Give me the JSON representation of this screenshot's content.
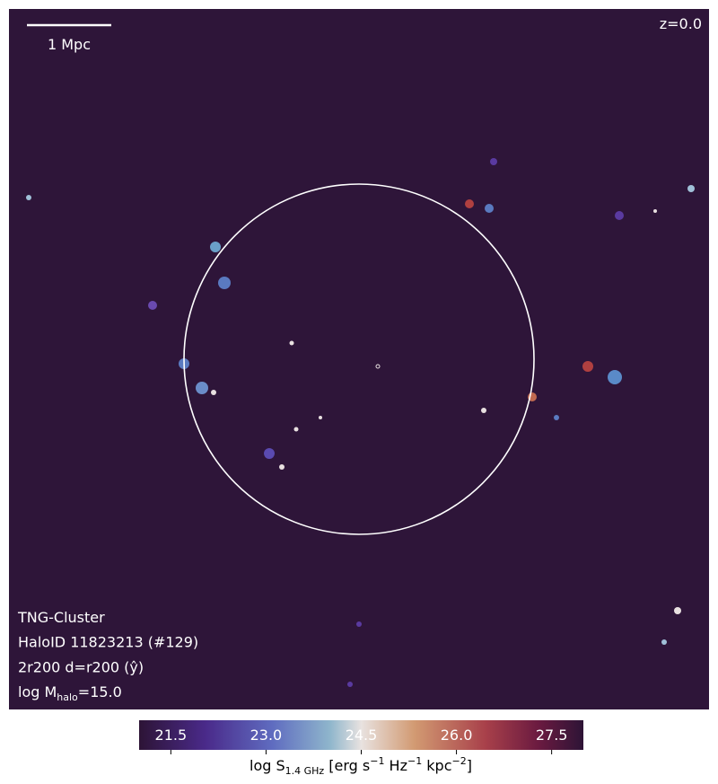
{
  "image": {
    "scale_bar_label": "1 Mpc",
    "redshift_label": "z=0.0",
    "info_lines": [
      "TNG-Cluster",
      "HaloID 11823213 (#129)",
      "2r200 d=r200 (ŷ)"
    ],
    "mass_line": {
      "prefix": "log M",
      "subscript": "halo",
      "suffix": "=15.0"
    }
  },
  "colorbar": {
    "clim": [
      21.0,
      28.0
    ],
    "ticks": [
      21.5,
      {
        "value": 23,
        "label": "23.0"
      },
      24.5,
      {
        "value": 26,
        "label": "26.0"
      },
      27.5
    ],
    "label_parts": [
      {
        "text": "log S"
      },
      {
        "text": "1.4 GHz",
        "sub": true
      },
      {
        "text": " [erg s"
      },
      {
        "text": "−1",
        "sup": true
      },
      {
        "text": " Hz"
      },
      {
        "text": "−1",
        "sup": true
      },
      {
        "text": " kpc"
      },
      {
        "text": "−2",
        "sup": true
      },
      {
        "text": "]"
      }
    ]
  }
}
